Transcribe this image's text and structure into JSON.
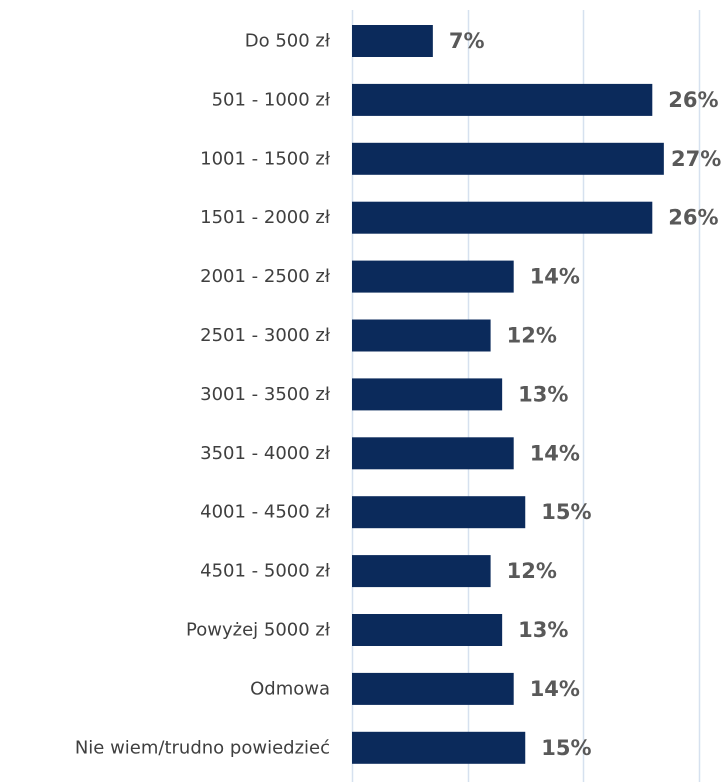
{
  "chart_data": {
    "type": "bar",
    "orientation": "horizontal",
    "categories": [
      "Do 500 zł",
      "501 - 1000 zł",
      "1001 - 1500 zł",
      "1501 - 2000 zł",
      "2001 - 2500 zł",
      "2501 - 3000 zł",
      "3001 - 3500 zł",
      "3501 - 4000 zł",
      "4001 - 4500 zł",
      "4501 - 5000 zł",
      "Powyżej 5000 zł",
      "Odmowa",
      "Nie wiem/trudno powiedzieć"
    ],
    "values": [
      7,
      26,
      27,
      26,
      14,
      12,
      13,
      14,
      15,
      12,
      13,
      14,
      15
    ],
    "value_labels": [
      "7%",
      "26%",
      "27%",
      "26%",
      "14%",
      "12%",
      "13%",
      "14%",
      "15%",
      "12%",
      "13%",
      "14%",
      "15%"
    ],
    "unit": "%",
    "xlim": [
      0,
      30
    ],
    "grid": true,
    "gridlines_at": [
      0,
      10,
      20,
      30
    ],
    "colors": {
      "bar": "#0b2a5b",
      "grid": "#d6e1ef",
      "category_text": "#3f3f3f",
      "value_text": "#595959"
    }
  }
}
